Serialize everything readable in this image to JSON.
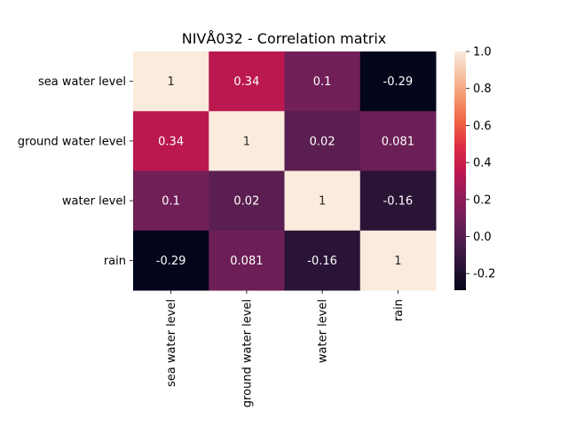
{
  "chart_data": {
    "type": "heatmap",
    "title": "NIVÅ032 - Correlation matrix",
    "xlabel": "",
    "ylabel": "",
    "row_labels": [
      "sea water level",
      "ground water level",
      "water level",
      "rain"
    ],
    "col_labels": [
      "sea water level",
      "ground water level",
      "water level",
      "rain"
    ],
    "values": [
      [
        1,
        0.34,
        0.1,
        -0.29
      ],
      [
        0.34,
        1,
        0.02,
        0.081
      ],
      [
        0.1,
        0.02,
        1,
        -0.16
      ],
      [
        -0.29,
        0.081,
        -0.16,
        1
      ]
    ],
    "annotations": [
      [
        "1",
        "0.34",
        "0.1",
        "-0.29"
      ],
      [
        "0.34",
        "1",
        "0.02",
        "0.081"
      ],
      [
        "0.1",
        "0.02",
        "1",
        "-0.16"
      ],
      [
        "-0.29",
        "0.081",
        "-0.16",
        "1"
      ]
    ],
    "colormap": "rocket",
    "vmin": -0.29,
    "vmax": 1,
    "colorbar_ticks": [
      "1.0",
      "0.8",
      "0.6",
      "0.4",
      "0.2",
      "0.0",
      "-0.2"
    ],
    "colorbar_tick_values": [
      1.0,
      0.8,
      0.6,
      0.4,
      0.2,
      0.0,
      -0.2
    ]
  }
}
